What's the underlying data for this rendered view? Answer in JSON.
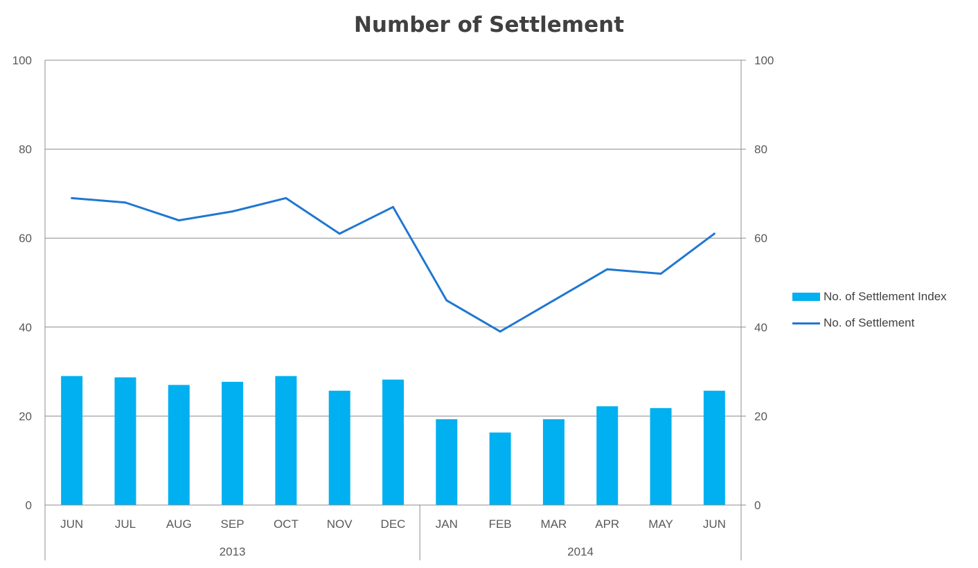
{
  "chart_data": {
    "type": "bar",
    "title": "Number of Settlement",
    "categories": [
      "JUN",
      "JUL",
      "AUG",
      "SEP",
      "OCT",
      "NOV",
      "DEC",
      "JAN",
      "FEB",
      "MAR",
      "APR",
      "MAY",
      "JUN"
    ],
    "groups": [
      {
        "label": "2013",
        "start": 0,
        "end": 6
      },
      {
        "label": "2014",
        "start": 7,
        "end": 12
      }
    ],
    "series": [
      {
        "name": "No. of Settlement Index",
        "kind": "bar",
        "axis": "left",
        "color": "#00B0F0",
        "values": [
          29,
          28.7,
          27,
          27.7,
          29,
          25.7,
          28.2,
          19.3,
          16.3,
          19.3,
          22.2,
          21.8,
          25.7
        ]
      },
      {
        "name": "No. of Settlement",
        "kind": "line",
        "axis": "right",
        "color": "#1F77D0",
        "values": [
          69,
          68,
          64,
          66,
          69,
          61,
          67,
          46,
          39,
          46,
          53,
          52,
          61
        ]
      }
    ],
    "ylim": [
      0,
      100
    ],
    "y2lim": [
      0,
      100
    ],
    "yticks": [
      0,
      20,
      40,
      60,
      80,
      100
    ],
    "y2ticks": [
      0,
      20,
      40,
      60,
      80,
      100
    ],
    "grid": true,
    "legend_position": "right"
  }
}
